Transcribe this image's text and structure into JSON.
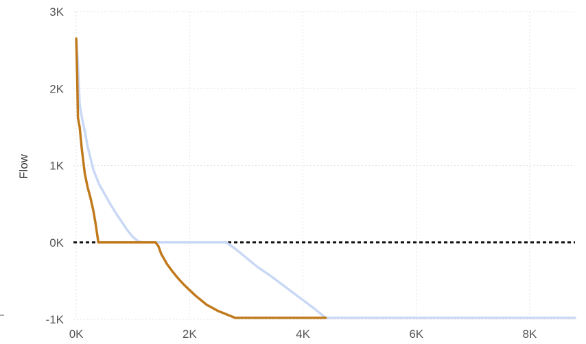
{
  "chart_data": {
    "type": "line",
    "ylabel": "Flow",
    "xlim": [
      -50,
      8800
    ],
    "ylim": [
      -1000,
      3000
    ],
    "x_ticks": [
      {
        "v": 0,
        "label": "0K"
      },
      {
        "v": 2000,
        "label": "2K"
      },
      {
        "v": 4000,
        "label": "4K"
      },
      {
        "v": 6000,
        "label": "6K"
      },
      {
        "v": 8000,
        "label": "8K"
      }
    ],
    "y_ticks": [
      {
        "v": -1000,
        "label": "-1K"
      },
      {
        "v": 0,
        "label": "0K"
      },
      {
        "v": 1000,
        "label": "1K"
      },
      {
        "v": 2000,
        "label": "2K"
      },
      {
        "v": 3000,
        "label": "3K"
      }
    ],
    "grid": true,
    "reference_line": {
      "y": 0,
      "style": "dotted",
      "color": "#111111"
    },
    "series": [
      {
        "color": "#c9d8f5",
        "points": [
          [
            0,
            2650
          ],
          [
            30,
            2300
          ],
          [
            60,
            1800
          ],
          [
            100,
            1620
          ],
          [
            150,
            1450
          ],
          [
            200,
            1250
          ],
          [
            300,
            950
          ],
          [
            400,
            760
          ],
          [
            500,
            630
          ],
          [
            600,
            500
          ],
          [
            700,
            380
          ],
          [
            800,
            270
          ],
          [
            900,
            160
          ],
          [
            1000,
            70
          ],
          [
            1100,
            10
          ],
          [
            1200,
            0
          ],
          [
            2650,
            0
          ],
          [
            2800,
            -80
          ],
          [
            3000,
            -200
          ],
          [
            3200,
            -320
          ],
          [
            3400,
            -420
          ],
          [
            3600,
            -530
          ],
          [
            3800,
            -640
          ],
          [
            4000,
            -750
          ],
          [
            4200,
            -860
          ],
          [
            4350,
            -950
          ],
          [
            4400,
            -980
          ],
          [
            8800,
            -980
          ]
        ]
      },
      {
        "color": "#c07a1c",
        "points": [
          [
            0,
            2650
          ],
          [
            15,
            2200
          ],
          [
            30,
            1620
          ],
          [
            60,
            1500
          ],
          [
            100,
            1200
          ],
          [
            150,
            900
          ],
          [
            200,
            720
          ],
          [
            250,
            580
          ],
          [
            300,
            420
          ],
          [
            340,
            250
          ],
          [
            370,
            100
          ],
          [
            390,
            0
          ],
          [
            1400,
            0
          ],
          [
            1450,
            -50
          ],
          [
            1500,
            -150
          ],
          [
            1600,
            -280
          ],
          [
            1700,
            -380
          ],
          [
            1800,
            -470
          ],
          [
            1900,
            -550
          ],
          [
            2000,
            -620
          ],
          [
            2100,
            -690
          ],
          [
            2200,
            -750
          ],
          [
            2300,
            -810
          ],
          [
            2400,
            -850
          ],
          [
            2500,
            -890
          ],
          [
            2600,
            -920
          ],
          [
            2700,
            -950
          ],
          [
            2800,
            -980
          ],
          [
            2950,
            -980
          ],
          [
            4400,
            -980
          ]
        ]
      }
    ]
  }
}
